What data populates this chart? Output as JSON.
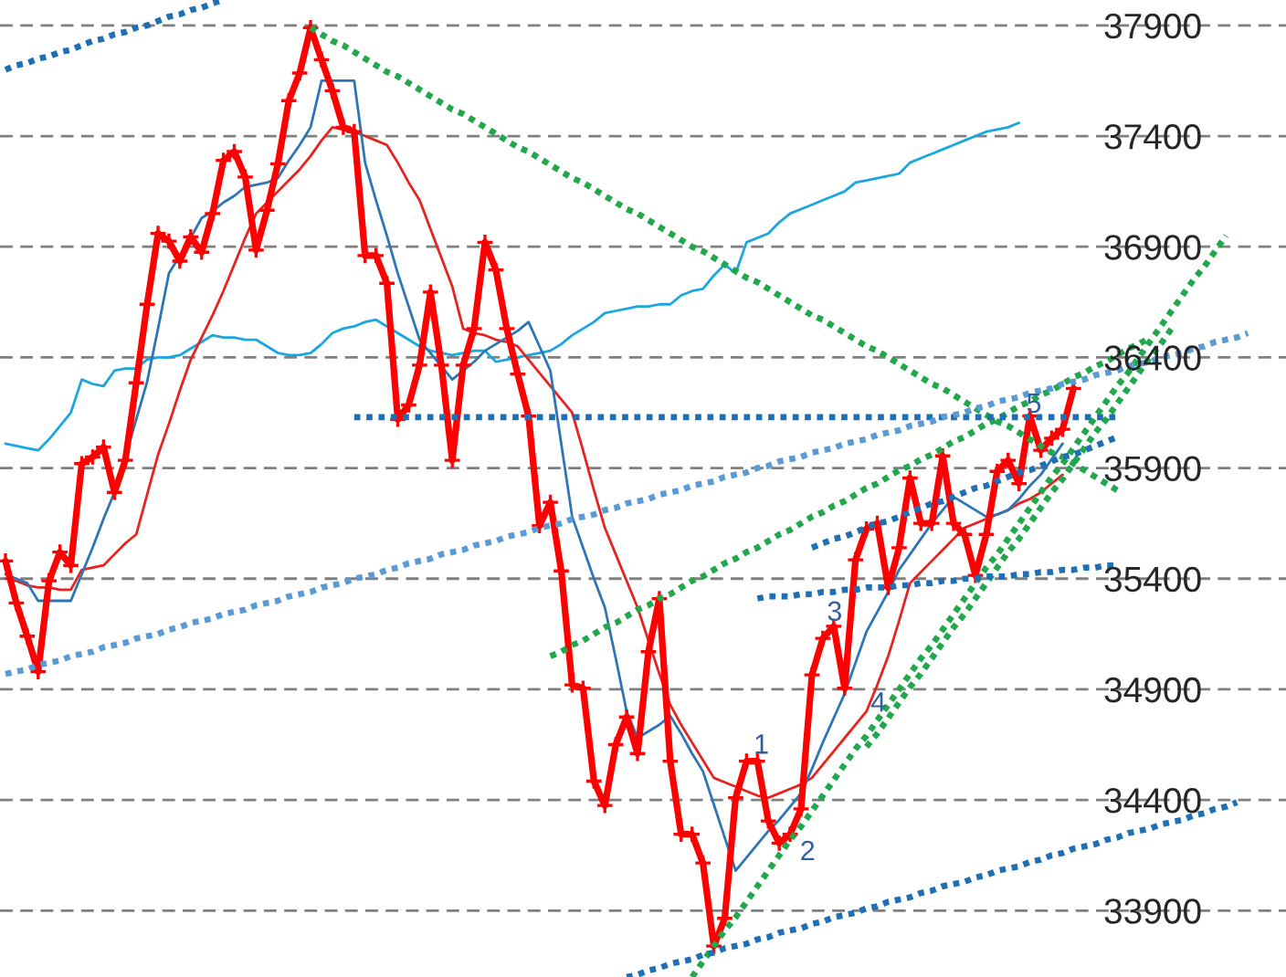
{
  "chart_data": {
    "type": "line",
    "categories": [
      null,
      null,
      null,
      null,
      null,
      null,
      null,
      null,
      null,
      null,
      null,
      null,
      null,
      null,
      null,
      null,
      null,
      null,
      null,
      null,
      null,
      null,
      null,
      null,
      null,
      null,
      null,
      null,
      null,
      null,
      null,
      null,
      null,
      null,
      null,
      null,
      null,
      null,
      null,
      null,
      null,
      null,
      null,
      null,
      null,
      null,
      null,
      null,
      null,
      null,
      null,
      null,
      null,
      null,
      null,
      null,
      null,
      null,
      null,
      null,
      null,
      null,
      null,
      null,
      null,
      null,
      null,
      null,
      null,
      null,
      null,
      null,
      null,
      null,
      null,
      null,
      null,
      null,
      null,
      null,
      null,
      null,
      null,
      null,
      null,
      null,
      null,
      null,
      null,
      null,
      null,
      null,
      null,
      null,
      null,
      null,
      null,
      null,
      null,
      null,
      null,
      null,
      null,
      null,
      null,
      null,
      null,
      null,
      null,
      null,
      null,
      null,
      null,
      null,
      null,
      null,
      null,
      null
    ],
    "ylim": [
      33600,
      38015
    ],
    "yticks": [
      33900,
      34400,
      34900,
      35400,
      35900,
      36400,
      36900,
      37400,
      37900
    ],
    "tick_labels": "y",
    "grid": "y",
    "series": [
      {
        "color": "#1aa7e0",
        "values": [
          36010,
          36000,
          35990,
          35980,
          36030,
          36090,
          36150,
          36300,
          36280,
          36270,
          36340,
          36350,
          36350,
          36390,
          36400,
          36400,
          36410,
          36440,
          36470,
          36500,
          36490,
          36490,
          36480,
          36480,
          36450,
          36420,
          36410,
          36410,
          36420,
          36460,
          36510,
          36530,
          36540,
          36560,
          36570,
          36540,
          36510,
          36480,
          36450,
          36430,
          36420,
          36410,
          36420,
          36430,
          36430,
          36380,
          36390,
          36400,
          36410,
          36420,
          36430,
          36460,
          36500,
          36530,
          36560,
          36600,
          36610,
          36620,
          36630,
          36630,
          36640,
          36640,
          36680,
          36700,
          36710,
          36770,
          36820,
          36780,
          36920,
          36940,
          36960,
          37010,
          37050,
          37070,
          37090,
          37110,
          37130,
          37150,
          37190,
          37200,
          37210,
          37220,
          37230,
          37280,
          37300,
          37320,
          37340,
          37360,
          37380,
          37400,
          37420,
          37430,
          37440,
          37460,
          null,
          null,
          null,
          null,
          null,
          null,
          null,
          null,
          null,
          null,
          null,
          null,
          null,
          null,
          null,
          null,
          null,
          null,
          null,
          null,
          null,
          null,
          null,
          null
        ]
      },
      {
        "color": "#e8221f",
        "values": [
          35400,
          35390,
          35370,
          35360,
          35360,
          35350,
          35350,
          35440,
          35450,
          35460,
          35510,
          35560,
          35600,
          35780,
          35960,
          36100,
          36250,
          36390,
          36490,
          36590,
          36700,
          36820,
          36940,
          37050,
          37100,
          37150,
          37200,
          37250,
          37310,
          37380,
          37440,
          37430,
          37420,
          37400,
          37380,
          37360,
          37280,
          37190,
          37110,
          36980,
          36850,
          36720,
          36530,
          36510,
          36500,
          36480,
          36470,
          36450,
          36390,
          36330,
          36270,
          36210,
          36150,
          35980,
          35800,
          35630,
          35510,
          35390,
          35270,
          35120,
          34970,
          34830,
          34740,
          34660,
          34580,
          34500,
          34480,
          34460,
          34440,
          34420,
          34410,
          34430,
          34450,
          34470,
          34500,
          34560,
          34620,
          34680,
          34740,
          34800,
          34920,
          35050,
          35210,
          35380,
          35430,
          35480,
          35530,
          35580,
          35630,
          35650,
          35670,
          35690,
          35710,
          35740,
          35760,
          35790,
          35830,
          35870,
          null,
          null,
          null,
          null,
          null,
          null,
          null,
          null,
          null,
          null,
          null,
          null,
          null,
          null,
          null,
          null,
          null,
          null,
          null,
          null
        ]
      },
      {
        "color": "#2e75b6",
        "values": [
          35420,
          35400,
          35380,
          35300,
          35300,
          35300,
          35300,
          35420,
          35540,
          35670,
          35790,
          35950,
          36120,
          36290,
          36530,
          36780,
          36860,
          36940,
          37030,
          37060,
          37100,
          37130,
          37170,
          37180,
          37190,
          37210,
          37290,
          37360,
          37440,
          37650,
          37650,
          37650,
          37650,
          37280,
          37110,
          36950,
          36780,
          36630,
          36480,
          36420,
          36360,
          36300,
          36340,
          36380,
          36430,
          36460,
          36490,
          36520,
          36560,
          36450,
          36340,
          36010,
          35680,
          35540,
          35400,
          35270,
          35040,
          34800,
          34680,
          34710,
          34740,
          34780,
          34700,
          34610,
          34530,
          34380,
          34230,
          34080,
          34140,
          34200,
          34260,
          34310,
          34370,
          34430,
          34540,
          34660,
          34770,
          34880,
          35020,
          35160,
          35250,
          35340,
          35440,
          35510,
          35580,
          35650,
          35710,
          35770,
          35740,
          35710,
          35680,
          35690,
          35710,
          35760,
          35820,
          35870,
          35940,
          36010,
          null,
          null,
          null,
          null,
          null,
          null,
          null,
          null,
          null,
          null,
          null,
          null,
          null,
          null,
          null,
          null,
          null,
          null,
          null,
          null
        ]
      },
      {
        "color": "#ff0000",
        "marker": "cross",
        "values": [
          35480,
          35290,
          35140,
          34980,
          35390,
          35520,
          35460,
          35920,
          35950,
          35995,
          35790,
          35935,
          36285,
          36640,
          36960,
          36925,
          36835,
          36945,
          36875,
          37050,
          37290,
          37330,
          37215,
          36885,
          37065,
          37275,
          37560,
          37685,
          37890,
          37745,
          37605,
          37440,
          37420,
          36860,
          36860,
          36735,
          36120,
          36185,
          36365,
          36695,
          36365,
          35935,
          36365,
          36530,
          36920,
          36795,
          36530,
          36325,
          36135,
          35640,
          35745,
          35435,
          34920,
          34905,
          34485,
          34375,
          34650,
          34775,
          34610,
          35070,
          35310,
          34575,
          34245,
          34245,
          34115,
          33740,
          33865,
          34410,
          34575,
          34575,
          34305,
          34205,
          34245,
          34360,
          34965,
          35130,
          35185,
          34905,
          35485,
          35625,
          35650,
          35360,
          35540,
          35855,
          35650,
          35650,
          35955,
          35650,
          35600,
          35415,
          35600,
          35885,
          35935,
          35830,
          36135,
          35980,
          36035,
          36075,
          36260,
          null,
          null,
          null,
          null,
          null,
          null,
          null,
          null,
          null,
          null,
          null,
          null,
          null,
          null,
          null,
          null,
          null,
          null,
          null
        ]
      },
      {
        "color": "#22a84c",
        "line_style": "dotted",
        "values": [
          null,
          null,
          null,
          null,
          null,
          null,
          null,
          null,
          null,
          null,
          null,
          null,
          null,
          null,
          null,
          null,
          null,
          null,
          null,
          null,
          null,
          null,
          null,
          null,
          null,
          null,
          null,
          null,
          37890,
          37860,
          37830,
          37810,
          37780,
          37750,
          37720,
          37690,
          37670,
          37640,
          37610,
          37580,
          37550,
          37520,
          37500,
          37470,
          37440,
          37410,
          37380,
          37350,
          37330,
          37300,
          37270,
          37240,
          37210,
          37190,
          37160,
          37130,
          37100,
          37070,
          37050,
          37020,
          36990,
          36960,
          36930,
          36900,
          36880,
          36850,
          36820,
          36790,
          36760,
          36740,
          36710,
          36680,
          36650,
          36620,
          36590,
          36570,
          36540,
          36510,
          36480,
          36450,
          36430,
          36400,
          36370,
          36340,
          36310,
          36280,
          36260,
          36230,
          36200,
          36170,
          36140,
          36110,
          36090,
          36060,
          36030,
          36000,
          35970,
          35950,
          35920,
          35890,
          35860,
          35830,
          35800,
          null,
          null,
          null,
          null,
          null,
          null,
          null,
          null,
          null,
          null,
          null,
          null,
          null,
          null,
          null
        ]
      },
      {
        "color": "#22a84c",
        "line_style": "dotted",
        "values": [
          null,
          null,
          null,
          null,
          null,
          null,
          null,
          null,
          null,
          null,
          null,
          null,
          null,
          null,
          null,
          null,
          null,
          null,
          null,
          null,
          null,
          null,
          null,
          null,
          null,
          null,
          null,
          null,
          null,
          null,
          null,
          null,
          null,
          null,
          null,
          null,
          null,
          null,
          null,
          null,
          null,
          null,
          null,
          null,
          null,
          null,
          null,
          null,
          null,
          null,
          35050,
          35070,
          35100,
          35120,
          35150,
          35180,
          35200,
          35230,
          35260,
          35280,
          35310,
          35330,
          35360,
          35390,
          35410,
          35440,
          35470,
          35490,
          35520,
          35540,
          35570,
          35600,
          35620,
          35650,
          35680,
          35700,
          35730,
          35750,
          35780,
          35810,
          35830,
          35860,
          35890,
          35910,
          35940,
          35960,
          35990,
          36020,
          36040,
          36070,
          36100,
          36120,
          36150,
          36180,
          36200,
          36230,
          36250,
          36280,
          36310,
          36330,
          36360,
          36380,
          36410,
          36440,
          36460,
          36490,
          null,
          null,
          null,
          null,
          null,
          null,
          null,
          null,
          null,
          null,
          null,
          null
        ]
      },
      {
        "color": "#22a84c",
        "line_style": "dotted",
        "values": [
          null,
          null,
          null,
          null,
          null,
          null,
          null,
          null,
          null,
          null,
          null,
          null,
          null,
          null,
          null,
          null,
          null,
          null,
          null,
          null,
          null,
          null,
          null,
          null,
          null,
          null,
          null,
          null,
          null,
          null,
          null,
          null,
          null,
          null,
          null,
          null,
          null,
          null,
          null,
          null,
          null,
          null,
          null,
          null,
          null,
          null,
          null,
          null,
          null,
          null,
          null,
          null,
          null,
          null,
          null,
          null,
          null,
          null,
          null,
          null,
          null,
          null,
          null,
          33600,
          33670,
          33740,
          33810,
          33870,
          33940,
          34010,
          34080,
          34150,
          34220,
          34280,
          34350,
          34420,
          34490,
          34560,
          34630,
          34690,
          34760,
          34830,
          34900,
          34970,
          35040,
          35100,
          35170,
          35240,
          35310,
          35380,
          35450,
          35510,
          35580,
          35650,
          35720,
          35790,
          35860,
          35920,
          35990,
          36060,
          36130,
          36200,
          36270,
          36330,
          36400,
          36470,
          36540,
          36610,
          36680,
          36750,
          36810,
          36880,
          36950,
          null,
          null,
          null,
          null,
          null
        ]
      },
      {
        "color": "#22a84c",
        "line_style": "dotted",
        "values": [
          null,
          null,
          null,
          null,
          null,
          null,
          null,
          null,
          null,
          null,
          null,
          null,
          null,
          null,
          null,
          null,
          null,
          null,
          null,
          null,
          null,
          null,
          null,
          null,
          null,
          null,
          null,
          null,
          null,
          null,
          null,
          null,
          null,
          null,
          null,
          null,
          null,
          null,
          null,
          null,
          null,
          null,
          null,
          null,
          null,
          null,
          null,
          null,
          null,
          null,
          null,
          null,
          null,
          null,
          null,
          null,
          null,
          null,
          null,
          null,
          null,
          null,
          null,
          null,
          null,
          null,
          null,
          null,
          null,
          null,
          null,
          null,
          null,
          null,
          null,
          null,
          null,
          null,
          null,
          34640,
          34700,
          34770,
          34840,
          34910,
          34970,
          35040,
          35110,
          35180,
          35240,
          35310,
          35380,
          35450,
          35520,
          35580,
          35650,
          35720,
          35790,
          35850,
          35920,
          35990,
          36060,
          36120,
          36190,
          36260,
          36330,
          36400,
          36460,
          36530,
          null,
          null,
          null,
          null,
          null,
          null,
          null,
          null,
          null,
          null
        ]
      },
      {
        "color": "#1f6fb4",
        "line_style": "dotted",
        "values": [
          37700,
          37720,
          37730,
          37750,
          37760,
          37780,
          37790,
          37810,
          37830,
          37840,
          37860,
          37870,
          37890,
          37900,
          37920,
          37940,
          37950,
          37970,
          37980,
          38000,
          38015,
          null,
          null,
          null,
          null,
          null,
          null,
          null,
          null,
          null,
          null,
          null,
          null,
          null,
          null,
          null,
          null,
          null,
          null,
          null,
          null,
          null,
          null,
          null,
          null,
          null,
          null,
          null,
          null,
          null,
          null,
          null,
          null,
          null,
          null,
          null,
          null,
          null,
          null,
          null,
          null,
          null,
          null,
          null,
          null,
          null,
          null,
          null,
          null,
          null,
          null,
          null,
          null,
          null,
          null,
          null,
          null,
          null,
          null,
          null,
          null,
          null,
          null,
          null,
          null,
          null,
          null,
          null,
          null,
          null,
          null,
          null,
          null,
          null,
          null,
          null,
          null,
          null,
          null,
          null,
          null,
          null,
          null,
          null,
          null,
          null,
          null,
          null,
          null,
          null,
          null,
          null,
          null,
          null,
          null,
          null,
          null,
          null
        ]
      },
      {
        "color": "#1f6fb4",
        "line_style": "dotted",
        "values": [
          null,
          null,
          null,
          null,
          null,
          null,
          null,
          null,
          null,
          null,
          null,
          null,
          null,
          null,
          null,
          null,
          null,
          null,
          null,
          null,
          null,
          null,
          null,
          null,
          null,
          null,
          null,
          null,
          null,
          null,
          null,
          null,
          null,
          null,
          null,
          null,
          null,
          null,
          null,
          null,
          null,
          null,
          null,
          null,
          null,
          null,
          null,
          null,
          null,
          null,
          null,
          null,
          null,
          null,
          null,
          null,
          null,
          33600,
          33610,
          33630,
          33640,
          33660,
          33670,
          33680,
          33700,
          33710,
          33730,
          33740,
          33750,
          33770,
          33780,
          33800,
          33810,
          33820,
          33840,
          33850,
          33870,
          33880,
          33890,
          33910,
          33920,
          33940,
          33950,
          33960,
          33980,
          33990,
          34010,
          34020,
          34030,
          34050,
          34060,
          34080,
          34090,
          34100,
          34120,
          34130,
          34150,
          34160,
          34180,
          34190,
          34200,
          34220,
          34230,
          34250,
          34260,
          34270,
          34290,
          34300,
          34310,
          34330,
          34340,
          34360,
          34370,
          34390,
          null,
          null,
          null,
          null
        ]
      },
      {
        "color": "#1f6fb4",
        "line_style": "dotted",
        "values": [
          null,
          null,
          null,
          null,
          null,
          null,
          null,
          null,
          null,
          null,
          null,
          null,
          null,
          null,
          null,
          null,
          null,
          null,
          null,
          null,
          null,
          null,
          null,
          null,
          null,
          null,
          null,
          null,
          null,
          null,
          null,
          null,
          36130,
          36130,
          36130,
          36130,
          36130,
          36130,
          36130,
          36130,
          36130,
          36130,
          36130,
          36130,
          36130,
          36130,
          36130,
          36130,
          36130,
          36130,
          36130,
          36130,
          36130,
          36130,
          36130,
          36130,
          36130,
          36130,
          36130,
          36130,
          36130,
          36130,
          36130,
          36130,
          36130,
          36130,
          36130,
          36130,
          36130,
          36130,
          36130,
          36130,
          36130,
          36130,
          36130,
          36130,
          36130,
          36130,
          36130,
          36130,
          36130,
          36130,
          36130,
          36130,
          36130,
          36130,
          36130,
          36130,
          36130,
          36130,
          36130,
          36130,
          36130,
          36130,
          36130,
          36130,
          36130,
          36130,
          36130,
          36130,
          36130,
          36130,
          36130,
          null,
          null,
          null,
          null,
          null,
          null,
          null,
          null,
          null,
          null,
          null,
          null,
          null,
          null,
          null
        ]
      },
      {
        "color": "#1f6fb4",
        "line_style": "dotted",
        "values": [
          null,
          null,
          null,
          null,
          null,
          null,
          null,
          null,
          null,
          null,
          null,
          null,
          null,
          null,
          null,
          null,
          null,
          null,
          null,
          null,
          null,
          null,
          null,
          null,
          null,
          null,
          null,
          null,
          null,
          null,
          null,
          null,
          null,
          null,
          null,
          null,
          null,
          null,
          null,
          null,
          null,
          null,
          null,
          null,
          null,
          null,
          null,
          null,
          null,
          null,
          null,
          null,
          null,
          null,
          null,
          null,
          null,
          null,
          null,
          null,
          null,
          null,
          null,
          null,
          null,
          null,
          null,
          null,
          null,
          35310,
          35320,
          35320,
          35320,
          35330,
          35330,
          35340,
          35340,
          35350,
          35350,
          35360,
          35360,
          35360,
          35370,
          35370,
          35380,
          35380,
          35390,
          35390,
          35400,
          35400,
          35410,
          35410,
          35410,
          35420,
          35420,
          35430,
          35430,
          35440,
          35440,
          35450,
          35450,
          35460,
          35460,
          null,
          null,
          null,
          null,
          null,
          null,
          null,
          null,
          null,
          null,
          null,
          null,
          null,
          null,
          null
        ]
      },
      {
        "color": "#1f6fb4",
        "line_style": "dotted",
        "values": [
          null,
          null,
          null,
          null,
          null,
          null,
          null,
          null,
          null,
          null,
          null,
          null,
          null,
          null,
          null,
          null,
          null,
          null,
          null,
          null,
          null,
          null,
          null,
          null,
          null,
          null,
          null,
          null,
          null,
          null,
          null,
          null,
          null,
          null,
          null,
          null,
          null,
          null,
          null,
          null,
          null,
          null,
          null,
          null,
          null,
          null,
          null,
          null,
          null,
          null,
          null,
          null,
          null,
          null,
          null,
          null,
          null,
          null,
          null,
          null,
          null,
          null,
          null,
          null,
          null,
          null,
          null,
          null,
          null,
          null,
          null,
          null,
          null,
          null,
          35540,
          35560,
          35580,
          35590,
          35610,
          35630,
          35650,
          35660,
          35680,
          35700,
          35720,
          35740,
          35750,
          35770,
          35790,
          35810,
          35820,
          35840,
          35860,
          35880,
          35890,
          35910,
          35930,
          35950,
          35960,
          35980,
          36000,
          36020,
          36040,
          null,
          null,
          null,
          null,
          null,
          null,
          null,
          null,
          null,
          null,
          null,
          null,
          null,
          null,
          null
        ]
      },
      {
        "color": "#5b9bd5",
        "line_style": "dotted",
        "values": [
          34970,
          34980,
          34990,
          35010,
          35020,
          35030,
          35050,
          35060,
          35070,
          35090,
          35100,
          35110,
          35130,
          35140,
          35150,
          35170,
          35180,
          35200,
          35210,
          35220,
          35240,
          35250,
          35260,
          35280,
          35290,
          35300,
          35320,
          35330,
          35340,
          35360,
          35370,
          35380,
          35400,
          35410,
          35420,
          35440,
          35450,
          35470,
          35480,
          35490,
          35510,
          35520,
          35530,
          35550,
          35560,
          35570,
          35590,
          35600,
          35610,
          35630,
          35640,
          35650,
          35670,
          35680,
          35690,
          35710,
          35720,
          35740,
          35750,
          35760,
          35780,
          35790,
          35800,
          35820,
          35830,
          35840,
          35860,
          35870,
          35880,
          35900,
          35910,
          35930,
          35940,
          35950,
          35970,
          35980,
          35990,
          36010,
          36020,
          36030,
          36050,
          36060,
          36070,
          36090,
          36100,
          36110,
          36130,
          36140,
          36150,
          36170,
          36180,
          36200,
          36210,
          36220,
          36240,
          36250,
          36260,
          36280,
          36290,
          36300,
          36320,
          36330,
          36340,
          36360,
          36370,
          36380,
          36400,
          36410,
          36420,
          36440,
          36450,
          36470,
          36480,
          36490,
          36510,
          null,
          null,
          null
        ]
      }
    ],
    "annotations": [
      "1",
      "2",
      "3",
      "4",
      "5"
    ]
  }
}
